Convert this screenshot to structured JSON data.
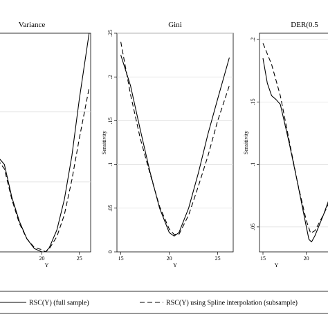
{
  "chart_data": [
    {
      "type": "line",
      "title": "Variance",
      "xlabel": "Y",
      "ylabel": "",
      "xlim": [
        13.5,
        26.5
      ],
      "xticks": [
        20,
        25
      ],
      "ylim": [
        0,
        1
      ],
      "yticks": [],
      "grid": true,
      "series": [
        {
          "name": "RSC(Y) (full sample)",
          "style": "solid",
          "x": [
            13.5,
            15,
            16,
            17,
            18,
            19,
            20,
            20.5,
            21,
            22,
            23,
            24,
            25,
            26.3
          ],
          "y": [
            0.46,
            0.4,
            0.25,
            0.14,
            0.06,
            0.015,
            0.0,
            0.0,
            0.02,
            0.1,
            0.24,
            0.44,
            0.7,
            1.0
          ]
        },
        {
          "name": "RSC(Y) using Spline interpolation (subsample)",
          "style": "dashed",
          "x": [
            13.5,
            15,
            16,
            17,
            18,
            19,
            20,
            20.5,
            21,
            22,
            23,
            24,
            25,
            26.3
          ],
          "y": [
            0.45,
            0.38,
            0.24,
            0.13,
            0.06,
            0.02,
            0.01,
            0.0,
            0.015,
            0.07,
            0.17,
            0.33,
            0.52,
            0.75
          ]
        }
      ]
    },
    {
      "type": "line",
      "title": "Gini",
      "xlabel": "Y",
      "ylabel": "Sensitivity",
      "xlim": [
        14.6,
        26.6
      ],
      "xticks": [
        15,
        20,
        25
      ],
      "ylim": [
        0,
        0.25
      ],
      "yticks": [
        0,
        0.05,
        0.1,
        0.15,
        0.2,
        0.25
      ],
      "ytick_labels": [
        "0",
        ".05",
        ".1",
        ".15",
        ".2",
        ".25"
      ],
      "grid": true,
      "series": [
        {
          "name": "RSC(Y) (full sample)",
          "style": "solid",
          "x": [
            15,
            16,
            17,
            18,
            19,
            20,
            20.5,
            21,
            22,
            23,
            24,
            25,
            26.2
          ],
          "y": [
            0.225,
            0.19,
            0.14,
            0.092,
            0.05,
            0.022,
            0.018,
            0.022,
            0.05,
            0.09,
            0.135,
            0.175,
            0.222
          ]
        },
        {
          "name": "RSC(Y) using Spline interpolation (subsample)",
          "style": "dashed",
          "x": [
            15,
            16,
            17,
            18,
            19,
            20,
            20.5,
            21,
            22,
            23,
            24,
            25,
            26.2
          ],
          "y": [
            0.24,
            0.18,
            0.13,
            0.09,
            0.052,
            0.026,
            0.02,
            0.02,
            0.042,
            0.075,
            0.11,
            0.15,
            0.19
          ]
        }
      ]
    },
    {
      "type": "line",
      "title": "DER(0.5",
      "xlabel": "Y",
      "ylabel": "Sensitivity",
      "xlim": [
        14.6,
        23.3
      ],
      "xticks": [
        15,
        20
      ],
      "ylim": [
        0.03,
        0.205
      ],
      "yticks": [
        0.05,
        0.1,
        0.15,
        0.2
      ],
      "ytick_labels": [
        ".05",
        ".1",
        ".15",
        ".2"
      ],
      "grid": true,
      "series": [
        {
          "name": "RSC(Y) (full sample)",
          "style": "solid",
          "x": [
            15,
            15.5,
            16,
            16.5,
            17,
            18,
            19,
            20,
            20.3,
            20.6,
            21,
            22,
            23.3
          ],
          "y": [
            0.185,
            0.165,
            0.155,
            0.152,
            0.148,
            0.118,
            0.085,
            0.05,
            0.04,
            0.038,
            0.043,
            0.06,
            0.085
          ]
        },
        {
          "name": "RSC(Y) using Spline interpolation (subsample)",
          "style": "dashed",
          "x": [
            15,
            16,
            17,
            18,
            19,
            20,
            20.5,
            21,
            22,
            23.3
          ],
          "y": [
            0.197,
            0.18,
            0.155,
            0.12,
            0.085,
            0.055,
            0.045,
            0.047,
            0.06,
            0.08
          ]
        }
      ]
    }
  ],
  "legend": {
    "placement": "bottom",
    "entries": [
      {
        "label": "RSC(Y) (full sample)",
        "style": "solid"
      },
      {
        "label": "RSC(Y) using Spline interpolation (subsample)",
        "style": "dashed"
      }
    ]
  }
}
